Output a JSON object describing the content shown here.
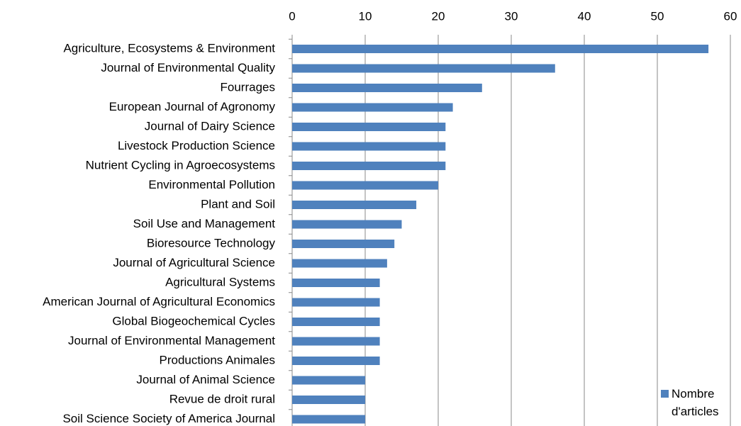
{
  "chart_data": {
    "type": "bar",
    "orientation": "horizontal",
    "categories": [
      "Agriculture, Ecosystems & Environment",
      "Journal of Environmental Quality",
      "Fourrages",
      "European Journal of Agronomy",
      "Journal of Dairy Science",
      "Livestock Production Science",
      "Nutrient Cycling in Agroecosystems",
      "Environmental Pollution",
      "Plant and Soil",
      "Soil Use and Management",
      "Bioresource Technology",
      "Journal of Agricultural Science",
      "Agricultural Systems",
      "American Journal of Agricultural Economics",
      "Global Biogeochemical Cycles",
      "Journal of Environmental Management",
      "Productions Animales",
      "Journal of Animal Science",
      "Revue de droit rural",
      "Soil Science Society of America Journal"
    ],
    "series": [
      {
        "name": "Nombre d'articles",
        "color": "#4f81bd",
        "values": [
          57,
          36,
          26,
          22,
          21,
          21,
          21,
          20,
          17,
          15,
          14,
          13,
          12,
          12,
          12,
          12,
          12,
          10,
          10,
          10
        ]
      }
    ],
    "xlim": [
      0,
      60
    ],
    "xticks": [
      0,
      10,
      20,
      30,
      40,
      50,
      60
    ],
    "grid": true,
    "legend": "lower right"
  }
}
